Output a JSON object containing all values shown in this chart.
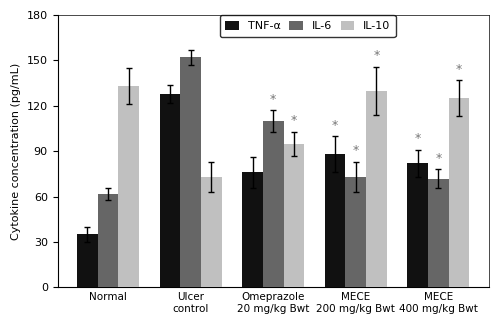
{
  "groups": [
    "Normal",
    "Ulcer\ncontrol",
    "Omeprazole\n20 mg/kg Bwt",
    "MECE\n200 mg/kg Bwt",
    "MECE\n400 mg/kg Bwt"
  ],
  "TNF_alpha": [
    35,
    128,
    76,
    88,
    82
  ],
  "IL_6": [
    62,
    152,
    110,
    73,
    72
  ],
  "IL_10": [
    133,
    73,
    95,
    130,
    125
  ],
  "TNF_alpha_err": [
    5,
    6,
    10,
    12,
    9
  ],
  "IL_6_err": [
    4,
    5,
    7,
    10,
    6
  ],
  "IL_10_err": [
    12,
    10,
    8,
    16,
    12
  ],
  "color_TNF": "#111111",
  "color_IL6": "#666666",
  "color_IL10": "#c0c0c0",
  "asterisk_TNF_groups": [
    3,
    4
  ],
  "asterisk_IL6_groups": [
    2,
    3,
    4
  ],
  "asterisk_IL10_groups": [
    2,
    3,
    4
  ],
  "ylim": [
    0,
    180
  ],
  "yticks": [
    0,
    30,
    60,
    90,
    120,
    150,
    180
  ],
  "ylabel": "Cytokine concentration (pg/mL)",
  "legend_labels": [
    "TNF-α",
    "IL-6",
    "IL-10"
  ],
  "bar_width": 0.25,
  "figsize": [
    5.0,
    3.25
  ],
  "dpi": 100
}
